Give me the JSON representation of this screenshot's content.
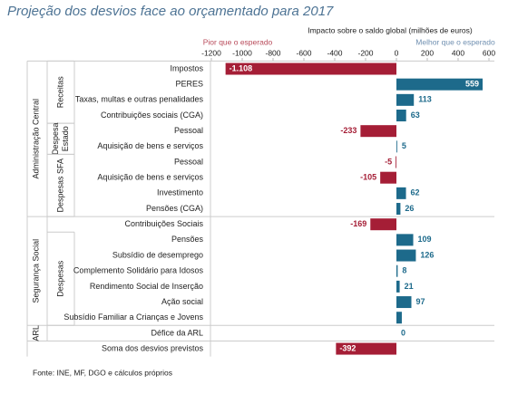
{
  "chart_data": {
    "type": "bar",
    "orientation": "horizontal",
    "title": "Projeção dos desvios face ao orçamentado para 2017",
    "x_label": "Impacto sobre o saldo global (milhões de euros)",
    "annotations": [
      "Pior que o esperado",
      "Melhor que o esperado"
    ],
    "source": "Fonte: INE, MF, DGO e cálculos próprios",
    "groups": [
      "Administração Central",
      "Segurança Social",
      "ARL"
    ],
    "subgroups": [
      "Receitas",
      "Despesa Estado",
      "Despesas SFA",
      "Despesas"
    ],
    "categories": [
      "Impostos",
      "PERES",
      "Taxas, multas e outras penalidades",
      "Contribuições sociais (CGA)",
      "Pessoal",
      "Aquisição de bens e serviços",
      "Pessoal",
      "Aquisição de bens e serviços",
      "Investimento",
      "Pensões (CGA)",
      "Contribuições Sociais",
      "Pensões",
      "Subsídio de desemprego",
      "Complemento Solidário para Idosos",
      "Rendimento Social de Inserção",
      "Ação social",
      "Subsídio Familiar a Crianças e Jovens",
      "Défice da ARL",
      "Soma dos desvios previstos"
    ],
    "values": [
      -1108,
      559,
      113,
      63,
      -233,
      5,
      -5,
      -105,
      62,
      26,
      -169,
      109,
      126,
      8,
      21,
      97,
      35,
      0,
      -392
    ],
    "value_labels": [
      "-1.108",
      "559",
      "113",
      "63",
      "-233",
      "5",
      "-5",
      "-105",
      "62",
      "26",
      "-169",
      "109",
      "126",
      "8",
      "21",
      "97",
      null,
      "0",
      "-392"
    ],
    "colors": {
      "negative": "#a51e36",
      "positive": "#1d6a8b"
    },
    "xlim": [
      -1200,
      600
    ],
    "xticks": [
      -1200,
      -1000,
      -800,
      -600,
      -400,
      -200,
      0,
      200,
      400,
      600
    ]
  }
}
